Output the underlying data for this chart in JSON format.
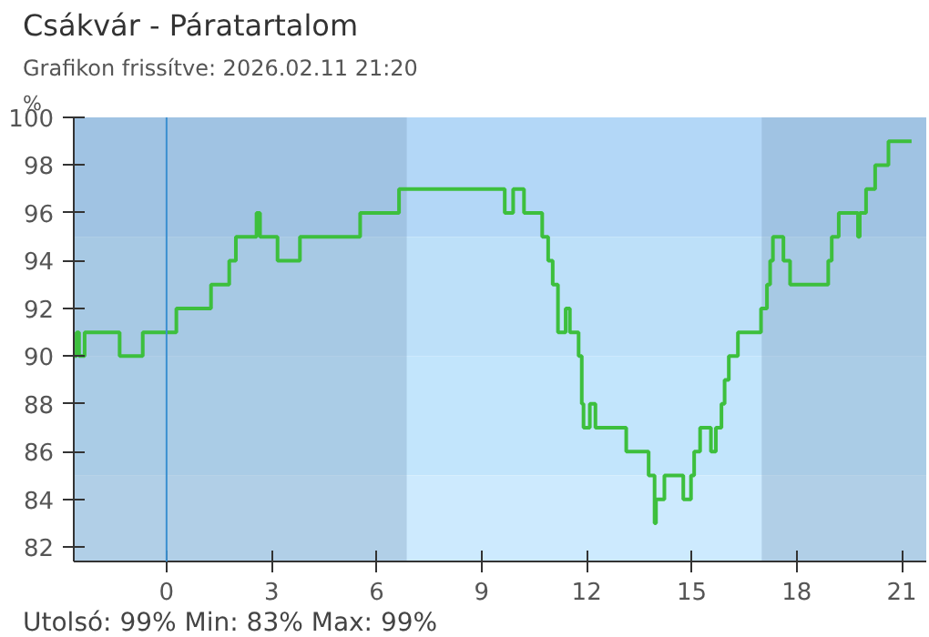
{
  "chart_data": {
    "type": "step",
    "title": "Csákvár - Páratartalom",
    "subtitle": "Grafikon frissítve: 2026.02.11 21:20",
    "ylabel": "%",
    "annotations": [
      "Utolsó: 99%  Min: 83%  Max: 99%"
    ],
    "xlim": [
      -2.65,
      21.7
    ],
    "ylim": [
      81.4,
      100
    ],
    "xticks": [
      0,
      3,
      6,
      9,
      12,
      15,
      18,
      21
    ],
    "yticks": [
      82,
      84,
      86,
      88,
      90,
      92,
      94,
      96,
      98,
      100
    ],
    "ref_lines": [
      {
        "axis": "x",
        "value": 0,
        "color": "#3a8fd0"
      }
    ],
    "bands": [
      {
        "axis": "y",
        "from": 95,
        "to": 100,
        "color": "#b3d7f7"
      },
      {
        "axis": "y",
        "from": 90,
        "to": 95,
        "color": "#bde0f9"
      },
      {
        "axis": "y",
        "from": 85,
        "to": 90,
        "color": "#c2e5fc"
      },
      {
        "axis": "y",
        "from": 81.4,
        "to": 85,
        "color": "#cdeafe"
      },
      {
        "axis": "x",
        "from": -2.65,
        "to": 6.86,
        "color": "#7d9fbe"
      },
      {
        "axis": "x",
        "from": 17.0,
        "to": 21.7,
        "color": "#7d9fbe"
      }
    ],
    "series": [
      {
        "color": "#3dbf3d",
        "x": [
          -2.65,
          -2.57,
          -2.5,
          -2.34,
          -1.34,
          -0.68,
          0.28,
          1.27,
          1.79,
          1.85,
          1.98,
          2.57,
          2.67,
          3.17,
          3.81,
          5.53,
          6.64,
          9.66,
          9.9,
          10.21,
          10.73,
          10.9,
          11.03,
          11.18,
          11.4,
          11.52,
          11.65,
          11.77,
          11.86,
          11.91,
          12.09,
          12.25,
          12.9,
          13.13,
          13.77,
          13.94,
          13.98,
          14.22,
          14.76,
          14.98,
          15.07,
          15.15,
          15.24,
          15.55,
          15.69,
          15.85,
          15.94,
          16.06,
          16.32,
          16.98,
          17.15,
          17.24,
          17.32,
          17.62,
          17.81,
          18.8,
          18.9,
          19.0,
          19.2,
          19.75,
          19.8,
          19.98,
          20.24,
          20.62,
          20.83,
          21.28
        ],
        "values": [
          90,
          91,
          90,
          91,
          90,
          91,
          92,
          93,
          94,
          94,
          95,
          96,
          95,
          94,
          95,
          96,
          97,
          96,
          97,
          96,
          95,
          94,
          93,
          91,
          92,
          91,
          91,
          90,
          88,
          87,
          88,
          87,
          87,
          86,
          85,
          83,
          84,
          85,
          84,
          85,
          86,
          86,
          87,
          86,
          87,
          88,
          89,
          90,
          91,
          92,
          93,
          94,
          95,
          94,
          93,
          93,
          94,
          95,
          96,
          95,
          96,
          97,
          98,
          99,
          99,
          99
        ]
      }
    ]
  }
}
